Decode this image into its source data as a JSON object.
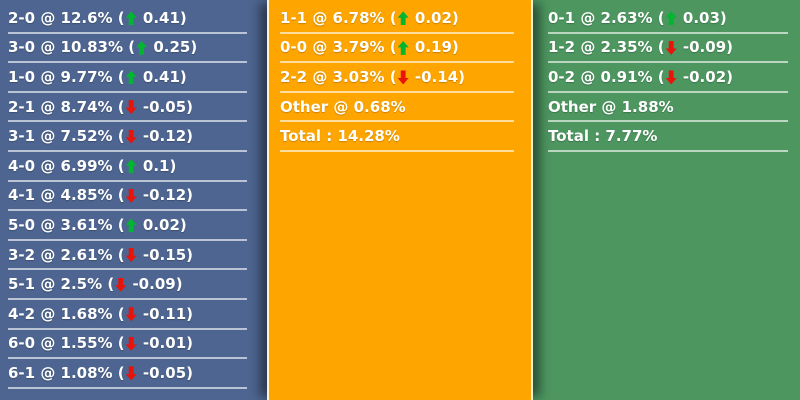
{
  "colors": {
    "up_arrow": "#00b52f",
    "down_arrow": "#e81309",
    "divider": "rgba(255,255,255,0.62)",
    "home_bg": "#4d6590",
    "draw_bg": "#ffa500",
    "away_bg": "#4d9660"
  },
  "columns": [
    {
      "name": "home-win-scores",
      "bg": "#4d6590",
      "rows": [
        {
          "label": "2-0 @ 12.6% (",
          "dir": "up",
          "after": " 0.41)"
        },
        {
          "label": "3-0 @ 10.83% (",
          "dir": "up",
          "after": " 0.25)"
        },
        {
          "label": "1-0 @ 9.77% (",
          "dir": "up",
          "after": " 0.41)"
        },
        {
          "label": "2-1 @ 8.74% (",
          "dir": "down",
          "after": " -0.05)"
        },
        {
          "label": "3-1 @ 7.52% (",
          "dir": "down",
          "after": " -0.12)"
        },
        {
          "label": "4-0 @ 6.99% (",
          "dir": "up",
          "after": " 0.1)"
        },
        {
          "label": "4-1 @ 4.85% (",
          "dir": "down",
          "after": " -0.12)"
        },
        {
          "label": "5-0 @ 3.61% (",
          "dir": "up",
          "after": " 0.02)"
        },
        {
          "label": "3-2 @ 2.61% (",
          "dir": "down",
          "after": " -0.15)"
        },
        {
          "label": "5-1 @ 2.5% (",
          "dir": "down",
          "after": " -0.09)"
        },
        {
          "label": "4-2 @ 1.68% (",
          "dir": "down",
          "after": " -0.11)"
        },
        {
          "label": "6-0 @ 1.55% (",
          "dir": "down",
          "after": " -0.01)"
        },
        {
          "label": "6-1 @ 1.08% (",
          "dir": "down",
          "after": " -0.05)"
        }
      ]
    },
    {
      "name": "draw-scores",
      "bg": "#ffa500",
      "rows": [
        {
          "label": "1-1 @ 6.78% (",
          "dir": "up",
          "after": " 0.02)"
        },
        {
          "label": "0-0 @ 3.79% (",
          "dir": "up",
          "after": " 0.19)"
        },
        {
          "label": "2-2 @ 3.03% (",
          "dir": "down",
          "after": " -0.14)"
        },
        {
          "label": "Other @ 0.68%",
          "dir": null,
          "after": ""
        },
        {
          "label": "Total : 14.28%",
          "dir": null,
          "after": ""
        }
      ]
    },
    {
      "name": "away-win-scores",
      "bg": "#4d9660",
      "rows": [
        {
          "label": "0-1 @ 2.63% (",
          "dir": "up",
          "after": " 0.03)"
        },
        {
          "label": "1-2 @ 2.35% (",
          "dir": "down",
          "after": " -0.09)"
        },
        {
          "label": "0-2 @ 0.91% (",
          "dir": "down",
          "after": " -0.02)"
        },
        {
          "label": "Other @ 1.88%",
          "dir": null,
          "after": ""
        },
        {
          "label": "Total : 7.77%",
          "dir": null,
          "after": ""
        }
      ]
    }
  ]
}
